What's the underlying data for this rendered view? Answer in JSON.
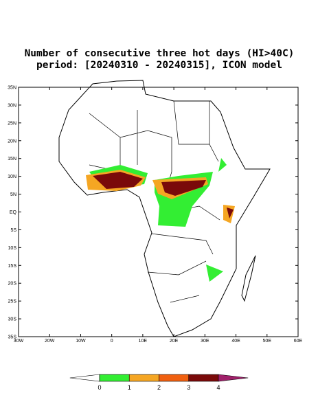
{
  "title": [
    "Number of consecutive three hot days (HI>40C)",
    "period: [20240310 - 20240315], ICON model"
  ],
  "map": {
    "xlim": [
      -30,
      60
    ],
    "ylim": [
      -35,
      35
    ],
    "yticks": [
      {
        "value": 35,
        "label": "35N"
      },
      {
        "value": 30,
        "label": "30N"
      },
      {
        "value": 25,
        "label": "25N"
      },
      {
        "value": 20,
        "label": "20N"
      },
      {
        "value": 15,
        "label": "15N"
      },
      {
        "value": 10,
        "label": "10N"
      },
      {
        "value": 5,
        "label": "5N"
      },
      {
        "value": 0,
        "label": "EQ"
      },
      {
        "value": -5,
        "label": "5S"
      },
      {
        "value": -10,
        "label": "10S"
      },
      {
        "value": -15,
        "label": "15S"
      },
      {
        "value": -20,
        "label": "20S"
      },
      {
        "value": -25,
        "label": "25S"
      },
      {
        "value": -30,
        "label": "30S"
      },
      {
        "value": -35,
        "label": "35S"
      }
    ],
    "xticks": [
      {
        "value": -30,
        "label": "30W"
      },
      {
        "value": -20,
        "label": "20W"
      },
      {
        "value": -10,
        "label": "10W"
      },
      0,
      {
        "value": 10,
        "label": "10E"
      },
      {
        "value": 20,
        "label": "20E"
      },
      {
        "value": 30,
        "label": "30E"
      },
      {
        "value": 40,
        "label": "40E"
      },
      {
        "value": 50,
        "label": "50E"
      },
      {
        "value": 60,
        "label": "60E"
      }
    ]
  },
  "colorbar": {
    "levels": [
      0,
      1,
      2,
      3,
      4
    ],
    "colors": [
      "#ffffff",
      "#33ee33",
      "#f5a623",
      "#f06010",
      "#7a0a0a",
      "#a0206a"
    ]
  }
}
